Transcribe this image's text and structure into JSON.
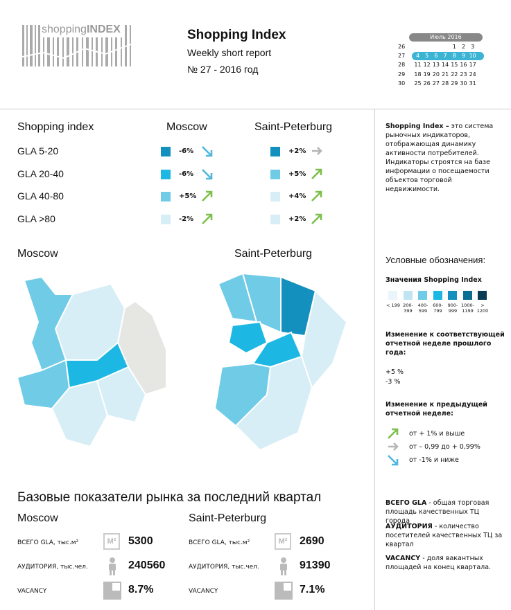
{
  "header": {
    "logo": {
      "prefix": "shopping",
      "suffix": "INDEX"
    },
    "title": "Shopping Index",
    "subtitle": "Weekly short report",
    "issue": "№ 27 - 2016 год"
  },
  "calendar": {
    "month": "Июль 2016",
    "selected_week": 27,
    "weeks": [
      {
        "number": 26,
        "days": [
          1,
          2,
          3
        ]
      },
      {
        "number": 27,
        "days": [
          4,
          5,
          6,
          7,
          8,
          9,
          10
        ]
      },
      {
        "number": 28,
        "days": [
          11,
          12,
          13,
          14,
          15,
          16,
          17
        ]
      },
      {
        "number": 29,
        "days": [
          18,
          19,
          20,
          21,
          22,
          23,
          24
        ]
      },
      {
        "number": 30,
        "days": [
          25,
          26,
          27,
          28,
          29,
          30,
          31
        ]
      }
    ]
  },
  "index_table": {
    "header": [
      "Shopping index",
      "Moscow",
      "Saint-Peterburg"
    ],
    "rows": [
      {
        "label": "GLA 5-20",
        "moscow": {
          "value": "-6%",
          "color": "#1390bd",
          "trend": "down"
        },
        "spb": {
          "value": "+2%",
          "color": "#1390bd",
          "trend": "flat"
        }
      },
      {
        "label": "GLA 20-40",
        "moscow": {
          "value": "-6%",
          "color": "#1cb8e3",
          "trend": "down"
        },
        "spb": {
          "value": "+5%",
          "color": "#6fcbe6",
          "trend": "up"
        }
      },
      {
        "label": "GLA 40-80",
        "moscow": {
          "value": "+5%",
          "color": "#6fcbe6",
          "trend": "up"
        },
        "spb": {
          "value": "+4%",
          "color": "#d7eef6",
          "trend": "up"
        }
      },
      {
        "label": "GLA >80",
        "moscow": {
          "value": "-2%",
          "color": "#d7eef6",
          "trend": "up"
        },
        "spb": {
          "value": "+2%",
          "color": "#d7eef6",
          "trend": "up"
        }
      }
    ]
  },
  "maps": {
    "moscow": "Moscow",
    "spb": "Saint-Peterburg"
  },
  "sidebar": {
    "description": {
      "bold": "Shopping Index –",
      "text": "это система рыночных индикаторов, отображающая динамику активности потребителей. Индикаторы строятся на базе информации о посещаемости объектов торговой недвижимости."
    },
    "legend_title": "Условные обозначения:",
    "scale_title": "Значения Shopping Index",
    "scale": [
      {
        "label": "< 199",
        "color": "#e9f5fa"
      },
      {
        "label": "200-399",
        "color": "#bfe5f2"
      },
      {
        "label": "400-599",
        "color": "#6fcbe6"
      },
      {
        "label": "600-799",
        "color": "#1cb8e3"
      },
      {
        "label": "900-999",
        "color": "#1390bd"
      },
      {
        "label": "1000-1199",
        "color": "#0b6f93"
      },
      {
        "label": "> 1200",
        "color": "#0a3d55"
      }
    ],
    "yoy_title": "Изменение к соответствующей отчетной неделе прошлого года:",
    "yoy_items": [
      "+5 %",
      "-3 %"
    ],
    "wow_title": "Изменение к предыдущей отчетной неделе:",
    "wow_items": [
      {
        "trend": "up",
        "label": "от + 1% и выше"
      },
      {
        "trend": "flat",
        "label": "от – 0,99 до + 0,99%"
      },
      {
        "trend": "down",
        "label": "от -1% и ниже"
      }
    ],
    "definitions": [
      {
        "term": "ВСЕГО GLA",
        "text": " - общая торговая площадь качественных ТЦ города"
      },
      {
        "term": "АУДИТОРИЯ",
        "text": " - количество посетителей качественных ТЦ за квартал"
      },
      {
        "term": "VACANCY",
        "text": " - доля вакантных площадей на конец квартала."
      }
    ]
  },
  "market": {
    "title": "Базовые показатели рынка за последний квартал",
    "gla_icon": "M²",
    "cities": [
      {
        "name": "Moscow",
        "rows": [
          {
            "label": "ВСЕГО GLA, тыс.м²",
            "icon": "gla",
            "value": "5300"
          },
          {
            "label": "АУДИТОРИЯ, тыс.чел.",
            "icon": "person",
            "value": "240560"
          },
          {
            "label": "VACANCY",
            "icon": "vacancy",
            "value": "8.7%"
          }
        ]
      },
      {
        "name": "Saint-Peterburg",
        "rows": [
          {
            "label": "ВСЕГО GLA, тыс.м²",
            "icon": "gla",
            "value": "2690"
          },
          {
            "label": "АУДИТОРИЯ, тыс.чел.",
            "icon": "person",
            "value": "91390"
          },
          {
            "label": "VACANCY",
            "icon": "vacancy",
            "value": "7.1%"
          }
        ]
      }
    ]
  }
}
